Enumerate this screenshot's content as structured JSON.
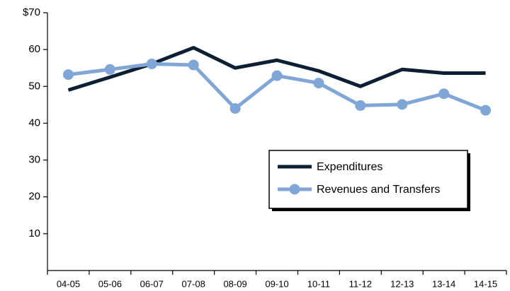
{
  "chart_data": {
    "type": "line",
    "categories": [
      "04-05",
      "05-06",
      "06-07",
      "07-08",
      "08-09",
      "09-10",
      "10-11",
      "11-12",
      "12-13",
      "13-14",
      "14-15"
    ],
    "series": [
      {
        "name": "Expenditures",
        "color": "#0d1f33",
        "values": [
          49.0,
          52.5,
          56.1,
          60.5,
          55.0,
          57.1,
          54.2,
          50.0,
          54.6,
          53.6,
          53.6
        ]
      },
      {
        "name": "Revenues and Transfers",
        "color": "#7fa6d6",
        "marker": true,
        "values": [
          53.2,
          54.6,
          56.1,
          55.8,
          44.0,
          52.9,
          50.9,
          44.8,
          45.1,
          48.0,
          43.5
        ]
      }
    ],
    "ylim": [
      0,
      70
    ],
    "yticks": [
      10,
      20,
      30,
      40,
      50,
      60,
      {
        "value": 70,
        "label": "$70"
      }
    ]
  }
}
